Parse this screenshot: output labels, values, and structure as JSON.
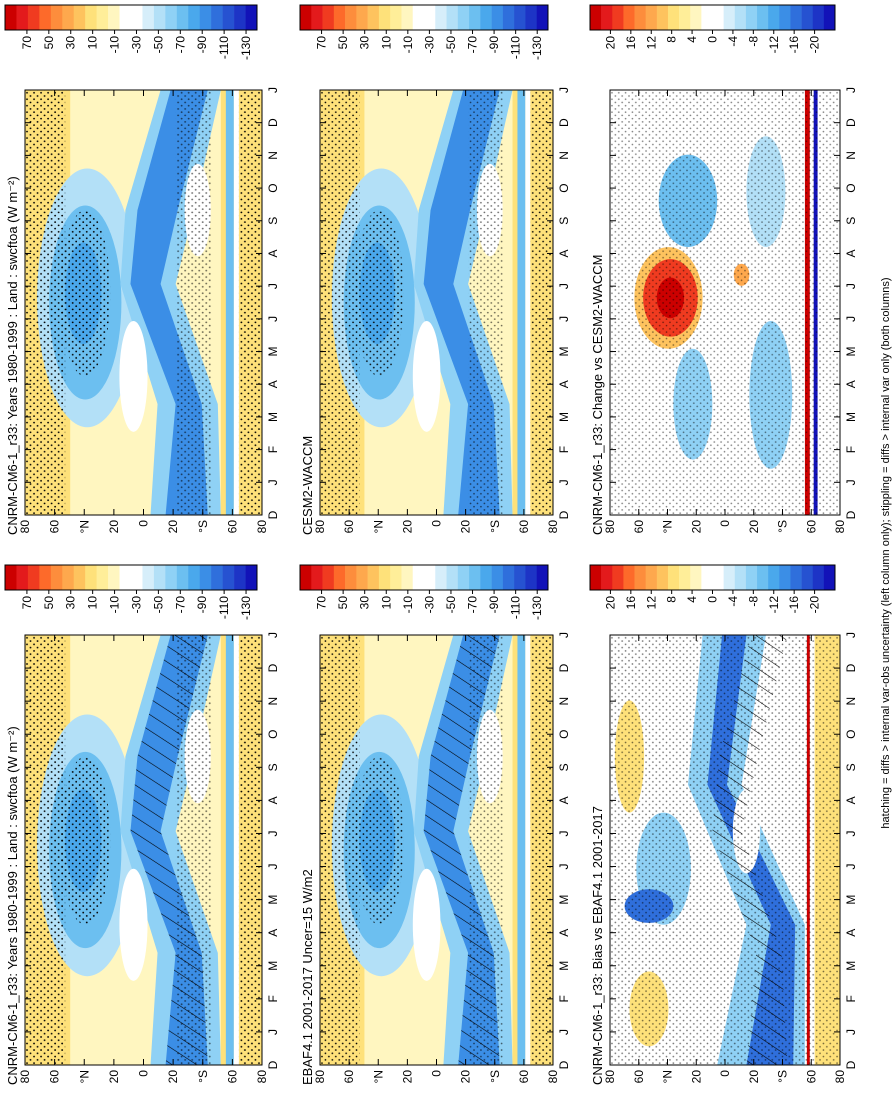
{
  "figure_caption": "hatching = diffs > internal var-obs uncertainty (left column only); stippling = diffs > internal var only (both columns)",
  "chart_data": [
    {
      "type": "heatmap",
      "title": "CNRM-CM6-1_r33: Years 1980-1999 : Land : swcftoa (W m⁻²)",
      "x_labels": [
        "D",
        "J",
        "F",
        "M",
        "A",
        "M",
        "J",
        "J",
        "A",
        "S",
        "O",
        "N",
        "D",
        "J"
      ],
      "ylim": [
        80,
        -80
      ],
      "yticks": [
        80,
        60,
        {
          "value": 40,
          "label": "°N"
        },
        20,
        0,
        {
          "value": -20,
          "label": "20"
        },
        {
          "value": -40,
          "label": "°S"
        },
        {
          "value": -60,
          "label": "60"
        },
        {
          "value": -80,
          "label": "80"
        }
      ],
      "colorbar": {
        "lim": [
          90,
          -140
        ],
        "ticks": [
          70,
          50,
          30,
          10,
          -10,
          -30,
          -50,
          -70,
          -90,
          -110,
          -130
        ],
        "colors": [
          "#cc0000",
          "#e31a1c",
          "#f03b20",
          "#fd6a2a",
          "#fd8d3c",
          "#fea84d",
          "#fec35e",
          "#fee17a",
          "#ffee99",
          "#fff6c0",
          "#ffffff",
          "#ffffff",
          "#d6eefa",
          "#b3e0f7",
          "#8fd1f5",
          "#6cbff0",
          "#4aa8ec",
          "#3b8ee6",
          "#2f6fdc",
          "#2652d1",
          "#1d34c6",
          "#1212b8"
        ]
      }
    },
    {
      "type": "heatmap",
      "title": "EBAF4.1 2001-2017 Uncer=15 W/m2",
      "x_labels": [
        "D",
        "J",
        "F",
        "M",
        "A",
        "M",
        "J",
        "J",
        "A",
        "S",
        "O",
        "N",
        "D",
        "J"
      ],
      "ylim": [
        80,
        -80
      ],
      "yticks": [
        80,
        60,
        {
          "value": 40,
          "label": "°N"
        },
        20,
        0,
        {
          "value": -20,
          "label": "20"
        },
        {
          "value": -40,
          "label": "°S"
        },
        {
          "value": -60,
          "label": "60"
        },
        {
          "value": -80,
          "label": "80"
        }
      ],
      "colorbar": {
        "lim": [
          90,
          -140
        ],
        "ticks": [
          70,
          50,
          30,
          10,
          -10,
          -30,
          -50,
          -70,
          -90,
          -110,
          -130
        ],
        "colors": [
          "#cc0000",
          "#e31a1c",
          "#f03b20",
          "#fd6a2a",
          "#fd8d3c",
          "#fea84d",
          "#fec35e",
          "#fee17a",
          "#ffee99",
          "#fff6c0",
          "#ffffff",
          "#ffffff",
          "#d6eefa",
          "#b3e0f7",
          "#8fd1f5",
          "#6cbff0",
          "#4aa8ec",
          "#3b8ee6",
          "#2f6fdc",
          "#2652d1",
          "#1d34c6",
          "#1212b8"
        ]
      }
    },
    {
      "type": "heatmap",
      "title": "CNRM-CM6-1_r33: Bias vs EBAF4.1 2001-2017",
      "x_labels": [
        "D",
        "J",
        "F",
        "M",
        "A",
        "M",
        "J",
        "J",
        "A",
        "S",
        "O",
        "N",
        "D",
        "J"
      ],
      "ylim": [
        80,
        -80
      ],
      "yticks": [
        80,
        60,
        {
          "value": 40,
          "label": "°N"
        },
        20,
        0,
        {
          "value": -20,
          "label": "20"
        },
        {
          "value": -40,
          "label": "°S"
        },
        {
          "value": -60,
          "label": "60"
        },
        {
          "value": -80,
          "label": "80"
        }
      ],
      "colorbar": {
        "lim": [
          24,
          -24
        ],
        "ticks": [
          20,
          16,
          12,
          8,
          4,
          0,
          -4,
          -8,
          -12,
          -16,
          -20
        ],
        "colors": [
          "#cc0000",
          "#e31a1c",
          "#f03b20",
          "#fd6a2a",
          "#fd8d3c",
          "#fea84d",
          "#fec35e",
          "#fee17a",
          "#ffee99",
          "#fff6c0",
          "#ffffff",
          "#ffffff",
          "#d6eefa",
          "#b3e0f7",
          "#8fd1f5",
          "#6cbff0",
          "#4aa8ec",
          "#3b8ee6",
          "#2f6fdc",
          "#2652d1",
          "#1d34c6",
          "#1212b8"
        ]
      }
    },
    {
      "type": "heatmap",
      "title": "CNRM-CM6-1_r33: Years 1980-1999 : Land : swcftoa (W m⁻²)",
      "x_labels": [
        "D",
        "J",
        "F",
        "M",
        "A",
        "M",
        "J",
        "J",
        "A",
        "S",
        "O",
        "N",
        "D",
        "J"
      ],
      "ylim": [
        80,
        -80
      ],
      "yticks": [
        80,
        60,
        {
          "value": 40,
          "label": "°N"
        },
        20,
        0,
        {
          "value": -20,
          "label": "20"
        },
        {
          "value": -40,
          "label": "°S"
        },
        {
          "value": -60,
          "label": "60"
        },
        {
          "value": -80,
          "label": "80"
        }
      ],
      "colorbar": {
        "lim": [
          90,
          -140
        ],
        "ticks": [
          70,
          50,
          30,
          10,
          -10,
          -30,
          -50,
          -70,
          -90,
          -110,
          -130
        ],
        "colors": [
          "#cc0000",
          "#e31a1c",
          "#f03b20",
          "#fd6a2a",
          "#fd8d3c",
          "#fea84d",
          "#fec35e",
          "#fee17a",
          "#ffee99",
          "#fff6c0",
          "#ffffff",
          "#ffffff",
          "#d6eefa",
          "#b3e0f7",
          "#8fd1f5",
          "#6cbff0",
          "#4aa8ec",
          "#3b8ee6",
          "#2f6fdc",
          "#2652d1",
          "#1d34c6",
          "#1212b8"
        ]
      }
    },
    {
      "type": "heatmap",
      "title": "CESM2-WACCM",
      "x_labels": [
        "D",
        "J",
        "F",
        "M",
        "A",
        "M",
        "J",
        "J",
        "A",
        "S",
        "O",
        "N",
        "D",
        "J"
      ],
      "ylim": [
        80,
        -80
      ],
      "yticks": [
        80,
        60,
        {
          "value": 40,
          "label": "°N"
        },
        20,
        0,
        {
          "value": -20,
          "label": "20"
        },
        {
          "value": -40,
          "label": "°S"
        },
        {
          "value": -60,
          "label": "60"
        },
        {
          "value": -80,
          "label": "80"
        }
      ],
      "colorbar": {
        "lim": [
          90,
          -140
        ],
        "ticks": [
          70,
          50,
          30,
          10,
          -10,
          -30,
          -50,
          -70,
          -90,
          -110,
          -130
        ],
        "colors": [
          "#cc0000",
          "#e31a1c",
          "#f03b20",
          "#fd6a2a",
          "#fd8d3c",
          "#fea84d",
          "#fec35e",
          "#fee17a",
          "#ffee99",
          "#fff6c0",
          "#ffffff",
          "#ffffff",
          "#d6eefa",
          "#b3e0f7",
          "#8fd1f5",
          "#6cbff0",
          "#4aa8ec",
          "#3b8ee6",
          "#2f6fdc",
          "#2652d1",
          "#1d34c6",
          "#1212b8"
        ]
      }
    },
    {
      "type": "heatmap",
      "title": "CNRM-CM6-1_r33: Change vs CESM2-WACCM",
      "x_labels": [
        "D",
        "J",
        "F",
        "M",
        "A",
        "M",
        "J",
        "J",
        "A",
        "S",
        "O",
        "N",
        "D",
        "J"
      ],
      "ylim": [
        80,
        -80
      ],
      "yticks": [
        80,
        60,
        {
          "value": 40,
          "label": "°N"
        },
        20,
        0,
        {
          "value": -20,
          "label": "20"
        },
        {
          "value": -40,
          "label": "°S"
        },
        {
          "value": -60,
          "label": "60"
        },
        {
          "value": -80,
          "label": "80"
        }
      ],
      "colorbar": {
        "lim": [
          24,
          -24
        ],
        "ticks": [
          20,
          16,
          12,
          8,
          4,
          0,
          -4,
          -8,
          -12,
          -16,
          -20
        ],
        "colors": [
          "#cc0000",
          "#e31a1c",
          "#f03b20",
          "#fd6a2a",
          "#fd8d3c",
          "#fea84d",
          "#fec35e",
          "#fee17a",
          "#ffee99",
          "#fff6c0",
          "#ffffff",
          "#ffffff",
          "#d6eefa",
          "#b3e0f7",
          "#8fd1f5",
          "#6cbff0",
          "#4aa8ec",
          "#3b8ee6",
          "#2f6fdc",
          "#2652d1",
          "#1d34c6",
          "#1212b8"
        ]
      }
    }
  ]
}
